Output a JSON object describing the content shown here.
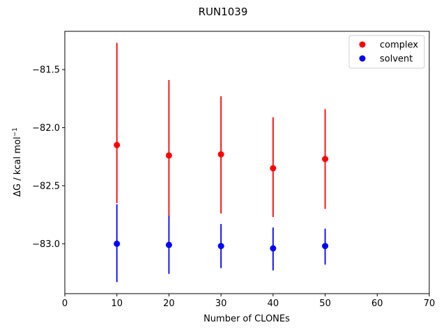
{
  "chart_data": {
    "type": "scatter",
    "title": "RUN1039",
    "xlabel": "Number of CLONEs",
    "ylabel_main": "ΔG / kcal mol",
    "ylabel_sup": "−1",
    "xlim": [
      0,
      70
    ],
    "ylim": [
      -83.43,
      -81.17
    ],
    "xticks": [
      0,
      10,
      20,
      30,
      40,
      50,
      60,
      70
    ],
    "xtick_labels": [
      "0",
      "10",
      "20",
      "30",
      "40",
      "50",
      "60",
      "70"
    ],
    "yticks": [
      -81.5,
      -82.0,
      -82.5,
      -83.0
    ],
    "ytick_labels": [
      "−81.5",
      "−82.0",
      "−82.5",
      "−83.0"
    ],
    "grid": false,
    "legend_position": "top-right",
    "series": [
      {
        "name": "complex",
        "color": "#ff0000",
        "x": [
          10,
          20,
          30,
          40,
          50
        ],
        "y": [
          -82.15,
          -82.24,
          -82.23,
          -82.35,
          -82.27
        ],
        "err_low": [
          -82.65,
          -82.77,
          -82.74,
          -82.77,
          -82.7
        ],
        "err_high": [
          -81.27,
          -81.59,
          -81.73,
          -81.91,
          -81.84
        ]
      },
      {
        "name": "solvent",
        "color": "#0000ff",
        "x": [
          10,
          20,
          30,
          40,
          50
        ],
        "y": [
          -83.0,
          -83.01,
          -83.02,
          -83.04,
          -83.02
        ],
        "err_low": [
          -83.33,
          -83.26,
          -83.21,
          -83.23,
          -83.18
        ],
        "err_high": [
          -82.66,
          -82.76,
          -82.83,
          -82.86,
          -82.87
        ]
      }
    ]
  }
}
